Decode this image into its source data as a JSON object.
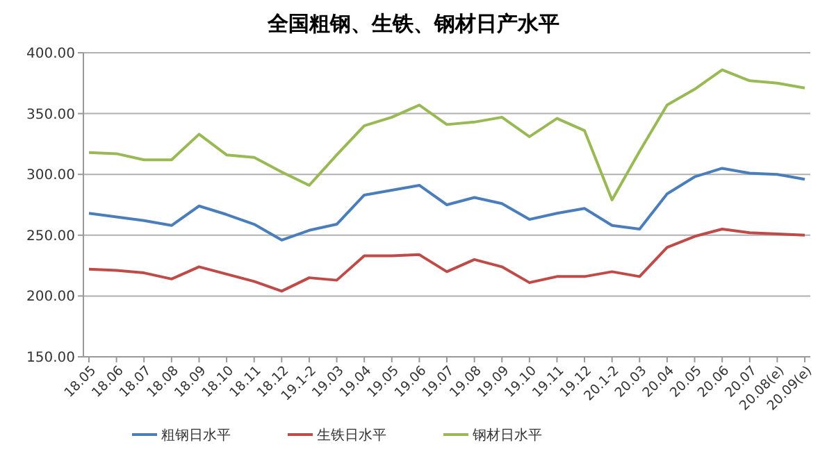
{
  "chart_data": {
    "type": "line",
    "title": "全国粗钢、生铁、钢材日产水平",
    "categories": [
      "18.05",
      "18.06",
      "18.07",
      "18.08",
      "18.09",
      "18.10",
      "18.11",
      "18.12",
      "19.1-2",
      "19.03",
      "19.04",
      "19.05",
      "19.06",
      "19.07",
      "19.08",
      "19.09",
      "19.10",
      "19.11",
      "19.12",
      "20.1-2",
      "20.03",
      "20.04",
      "20.05",
      "20.06",
      "20.07",
      "20.08(e)",
      "20.09(e)"
    ],
    "series": [
      {
        "name": "粗钢日水平",
        "color": "#4a7ebb",
        "values": [
          268,
          265,
          262,
          258,
          274,
          267,
          259,
          246,
          254,
          259,
          283,
          287,
          291,
          275,
          281,
          276,
          263,
          268,
          272,
          258,
          255,
          284,
          298,
          305,
          301,
          300,
          296
        ]
      },
      {
        "name": "生铁日水平",
        "color": "#be4b48",
        "values": [
          222,
          221,
          219,
          214,
          224,
          218,
          212,
          204,
          215,
          213,
          233,
          233,
          234,
          220,
          230,
          224,
          211,
          216,
          216,
          220,
          216,
          240,
          249,
          255,
          252,
          251,
          250
        ]
      },
      {
        "name": "钢材日水平",
        "color": "#98b954",
        "values": [
          318,
          317,
          312,
          312,
          333,
          316,
          314,
          302,
          291,
          316,
          340,
          347,
          357,
          341,
          343,
          347,
          331,
          346,
          336,
          279,
          319,
          357,
          370,
          386,
          377,
          375,
          371
        ]
      }
    ],
    "ylim": [
      150,
      400
    ],
    "yticks": [
      {
        "value": 150,
        "label": "150.00"
      },
      {
        "value": 200,
        "label": "200.00"
      },
      {
        "value": 250,
        "label": "250.00"
      },
      {
        "value": 300,
        "label": "300.00"
      },
      {
        "value": 350,
        "label": "350.00"
      },
      {
        "value": 400,
        "label": "400.00"
      }
    ],
    "grid": "y",
    "legend": "bottom",
    "marker": "none",
    "line_style": "solid"
  }
}
